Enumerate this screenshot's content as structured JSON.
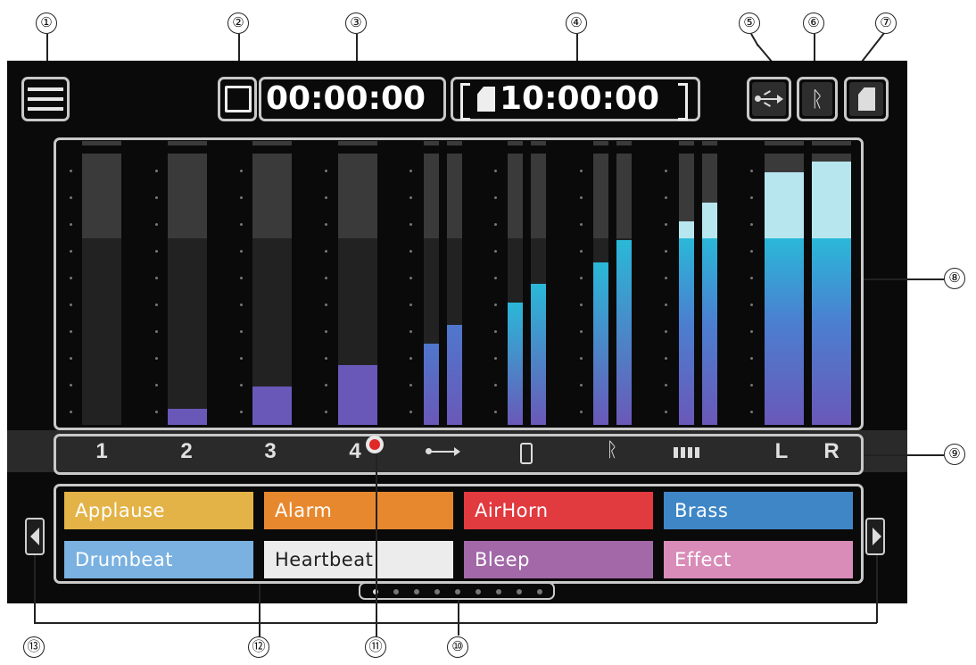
{
  "callouts": [
    "①",
    "②",
    "③",
    "④",
    "⑤",
    "⑥",
    "⑦",
    "⑧",
    "⑨",
    "⑩",
    "⑪",
    "⑫",
    "⑬"
  ],
  "header": {
    "menu_icon": "hamburger-menu-icon",
    "record_time": "00:00:00",
    "remaining_time": "10:00:00",
    "status_icons": [
      "usb-icon",
      "bluetooth-icon",
      "sd-card-icon"
    ]
  },
  "meters": {
    "channels": [
      {
        "label": "1",
        "levels": [
          0.0
        ]
      },
      {
        "label": "2",
        "levels": [
          0.06
        ]
      },
      {
        "label": "3",
        "levels": [
          0.14
        ]
      },
      {
        "label": "4",
        "levels": [
          0.22
        ]
      },
      {
        "label": "usb",
        "icon": "usb-icon",
        "levels": [
          0.3,
          0.37
        ]
      },
      {
        "label": "phone",
        "icon": "smartphone-icon",
        "levels": [
          0.45,
          0.52
        ]
      },
      {
        "label": "bt",
        "icon": "bluetooth-icon",
        "levels": [
          0.6,
          0.68
        ]
      },
      {
        "label": "pads",
        "icon": "pads-icon",
        "levels": [
          0.75,
          0.82
        ]
      },
      {
        "label": "L",
        "levels": [
          0.93
        ]
      },
      {
        "label": "R",
        "levels": [
          0.97
        ]
      }
    ],
    "colors": {
      "low": "#6a58b8",
      "mid": "#2ab8d8",
      "high": "#b8e6ee"
    }
  },
  "channel_labels": {
    "ch1": "1",
    "ch2": "2",
    "ch3": "3",
    "ch4": "4",
    "left": "L",
    "right": "R"
  },
  "pads": [
    {
      "label": "Applause",
      "color": "#e3b347"
    },
    {
      "label": "Alarm",
      "color": "#e8882e"
    },
    {
      "label": "AirHorn",
      "color": "#e13a3f"
    },
    {
      "label": "Brass",
      "color": "#3f86c6"
    },
    {
      "label": "Drumbeat",
      "color": "#7ab1e0"
    },
    {
      "label": "Heartbeat",
      "color": "#ececec"
    },
    {
      "label": "Bleep",
      "color": "#a268a8"
    },
    {
      "label": "Effect",
      "color": "#d98cb8"
    }
  ],
  "pagination": {
    "pages": 9,
    "current": 1
  }
}
